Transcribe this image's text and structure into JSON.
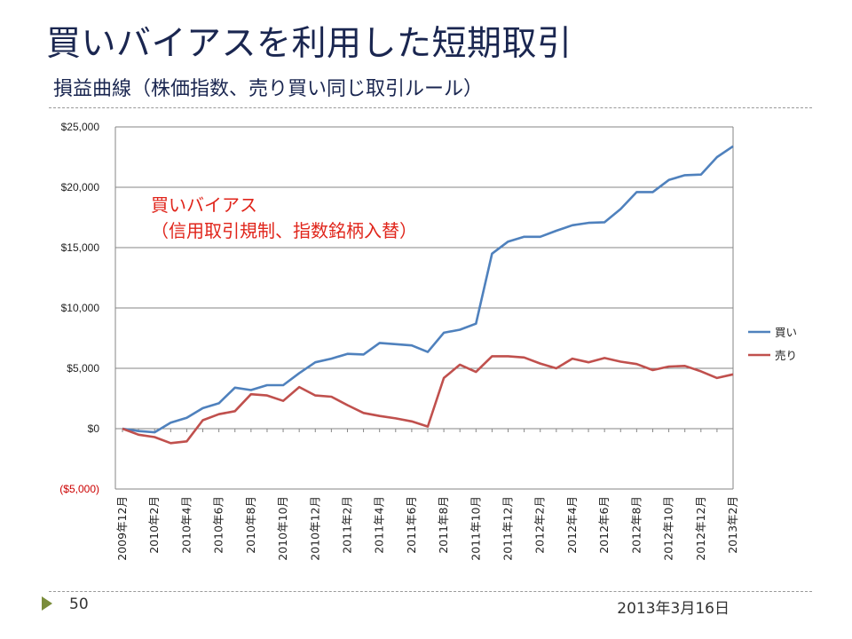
{
  "slide": {
    "title": "買いバイアスを利用した短期取引",
    "subtitle": "損益曲線（株価指数、売り買い同じ取引ルール）",
    "page_number": "50",
    "date": "2013年3月16日",
    "arrow_icon": "triangle-right-icon",
    "accent_color": "#7a8c3a",
    "title_color": "#1a2650"
  },
  "chart_data": {
    "type": "line",
    "title": "",
    "xlabel": "",
    "ylabel": "",
    "ylim": [
      -5000,
      25000
    ],
    "yticks": [
      -5000,
      0,
      5000,
      10000,
      15000,
      20000,
      25000
    ],
    "ytick_labels": [
      "($5,000)",
      "$0",
      "$5,000",
      "$10,000",
      "$15,000",
      "$20,000",
      "$25,000"
    ],
    "negative_tick_color": "#cc0000",
    "grid": true,
    "legend_position": "right",
    "x": [
      "2009年12月",
      "2010年1月",
      "2010年2月",
      "2010年3月",
      "2010年4月",
      "2010年5月",
      "2010年6月",
      "2010年7月",
      "2010年8月",
      "2010年9月",
      "2010年10月",
      "2010年11月",
      "2010年12月",
      "2011年1月",
      "2011年2月",
      "2011年3月",
      "2011年4月",
      "2011年5月",
      "2011年6月",
      "2011年7月",
      "2011年8月",
      "2011年9月",
      "2011年10月",
      "2011年11月",
      "2011年12月",
      "2012年1月",
      "2012年2月",
      "2012年3月",
      "2012年4月",
      "2012年5月",
      "2012年6月",
      "2012年7月",
      "2012年8月",
      "2012年9月",
      "2012年10月",
      "2012年11月",
      "2012年12月",
      "2013年1月",
      "2013年2月"
    ],
    "x_tick_labels": [
      "2009年12月",
      "2010年2月",
      "2010年4月",
      "2010年6月",
      "2010年8月",
      "2010年10月",
      "2010年12月",
      "2011年2月",
      "2011年4月",
      "2011年6月",
      "2011年8月",
      "2011年10月",
      "2011年12月",
      "2012年2月",
      "2012年4月",
      "2012年6月",
      "2012年8月",
      "2012年10月",
      "2012年12月",
      "2013年2月"
    ],
    "series": [
      {
        "name": "買い",
        "color": "#4f81bd",
        "values": [
          0,
          -200,
          -300,
          500,
          900,
          1700,
          2100,
          3400,
          3200,
          3600,
          3600,
          4600,
          5500,
          5800,
          6200,
          6150,
          7100,
          7000,
          6900,
          6350,
          7950,
          8200,
          8700,
          14500,
          15500,
          15900,
          15900,
          16400,
          16850,
          17050,
          17100,
          18200,
          19600,
          19600,
          20600,
          21000,
          21050,
          22500,
          23400
        ]
      },
      {
        "name": "売り",
        "color": "#c0504d",
        "values": [
          0,
          -500,
          -700,
          -1200,
          -1050,
          700,
          1200,
          1450,
          2850,
          2750,
          2300,
          3450,
          2750,
          2650,
          1950,
          1300,
          1050,
          850,
          600,
          180,
          4200,
          5300,
          4700,
          6000,
          6000,
          5900,
          5400,
          5000,
          5800,
          5500,
          5850,
          5550,
          5350,
          4850,
          5150,
          5200,
          4750,
          4200,
          4500
        ]
      }
    ],
    "annotation": {
      "line1": "買いバイアス",
      "line2": "（信用取引規制、指数銘柄入替）",
      "color": "#e0251b"
    }
  }
}
